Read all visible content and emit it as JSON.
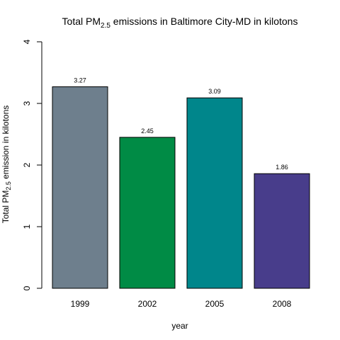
{
  "chart_data": {
    "type": "bar",
    "title": {
      "pre": "Total PM",
      "sub": "2.5",
      "post": " emissions in Baltimore City-MD in kilotons"
    },
    "xlabel": "year",
    "ylabel": {
      "pre": "Total PM",
      "sub": "2.5",
      "post": " emission in kilotons"
    },
    "categories": [
      "1999",
      "2002",
      "2005",
      "2008"
    ],
    "values": [
      3.27,
      2.45,
      3.09,
      1.86
    ],
    "value_labels": [
      "3.27",
      "2.45",
      "3.09",
      "1.86"
    ],
    "colors": [
      "#6e7f8d",
      "#008b45",
      "#00868b",
      "#483d8b"
    ],
    "ylim": [
      0,
      4
    ],
    "yticks": [
      0,
      1,
      2,
      3,
      4
    ],
    "ytick_labels": [
      "0",
      "1",
      "2",
      "3",
      "4"
    ],
    "grid": false,
    "legend": "none"
  }
}
